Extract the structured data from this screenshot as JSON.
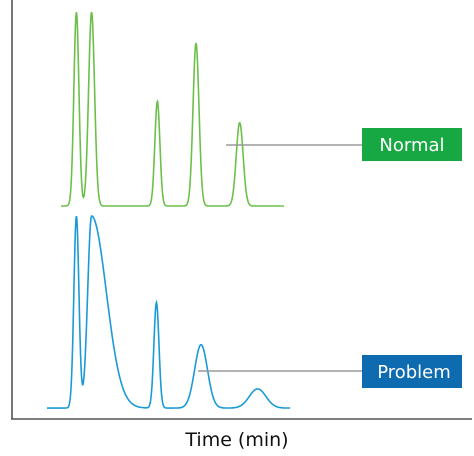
{
  "chart_data": {
    "type": "line",
    "xlabel": "Time (min)",
    "ylabel": "",
    "grid": false,
    "x_range": [
      0,
      100
    ],
    "y_range": [
      0,
      1
    ],
    "series": [
      {
        "name": "Normal",
        "color": "#6cc04a",
        "label_bg": "#17a844",
        "baseline": 0.03,
        "peaks": [
          {
            "x": 14.0,
            "height": 1.0,
            "width": 0.55
          },
          {
            "x": 17.3,
            "height": 1.0,
            "width": 0.65
          },
          {
            "x": 31.6,
            "height": 0.54,
            "width": 0.55
          },
          {
            "x": 40.0,
            "height": 0.84,
            "width": 0.65
          },
          {
            "x": 49.5,
            "height": 0.43,
            "width": 0.75
          }
        ]
      },
      {
        "name": "Problem",
        "color": "#1a9ad6",
        "label_bg": "#0f6bb0",
        "baseline": 0.03,
        "peaks": [
          {
            "x": 14.0,
            "height": 1.0,
            "width": 0.55
          },
          {
            "x": 17.3,
            "height": 1.0,
            "width": 0.85,
            "tail": 3.2
          },
          {
            "x": 31.4,
            "height": 0.55,
            "width": 0.55
          },
          {
            "x": 41.1,
            "height": 0.33,
            "width": 1.4
          },
          {
            "x": 53.4,
            "height": 0.1,
            "width": 1.8
          }
        ]
      }
    ]
  }
}
